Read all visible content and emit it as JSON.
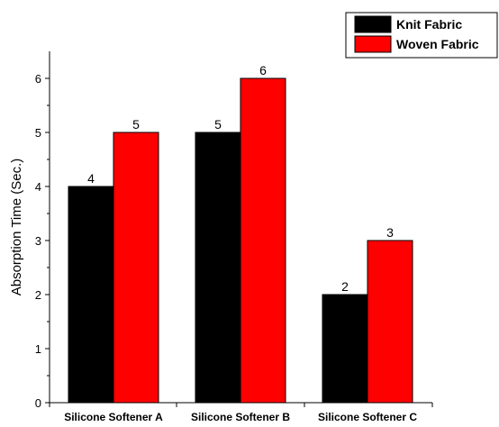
{
  "chart_data": {
    "type": "bar",
    "categories": [
      "Silicone Softener A",
      "Silicone Softener B",
      "Silicone Softener C"
    ],
    "series": [
      {
        "name": "Knit Fabric",
        "values": [
          4,
          5,
          2
        ],
        "color": "#000000"
      },
      {
        "name": "Woven Fabric",
        "values": [
          5,
          6,
          3
        ],
        "color": "#ff0000"
      }
    ],
    "title": "",
    "xlabel": "",
    "ylabel": "Absorption Time (Sec.)",
    "ylim": [
      0,
      6.5
    ],
    "yticks": [
      0,
      1,
      2,
      3,
      4,
      5,
      6
    ],
    "grid": false,
    "legend_position": "top-right"
  }
}
